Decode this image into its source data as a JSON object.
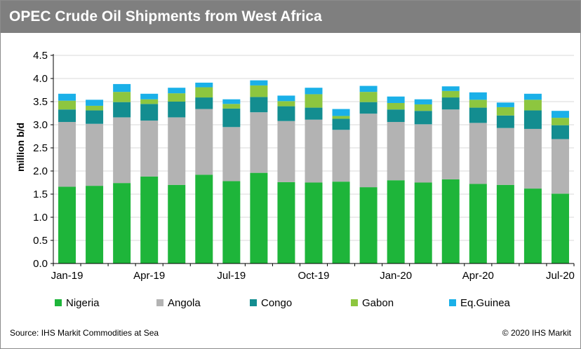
{
  "header": {
    "title": "OPEC Crude Oil Shipments from West Africa"
  },
  "footer": {
    "source": "Source: IHS Markit Commodities at Sea",
    "copyright": "© 2020 IHS Markit"
  },
  "chart_data": {
    "type": "bar",
    "stacked": true,
    "ylabel": "million b/d",
    "ylim": [
      0,
      4.5
    ],
    "yticks": [
      "0.0",
      "0.5",
      "1.0",
      "1.5",
      "2.0",
      "2.5",
      "3.0",
      "3.5",
      "4.0",
      "4.5"
    ],
    "categories": [
      "Jan-19",
      "Feb-19",
      "Mar-19",
      "Apr-19",
      "May-19",
      "Jun-19",
      "Jul-19",
      "Aug-19",
      "Sep-19",
      "Oct-19",
      "Nov-19",
      "Dec-19",
      "Jan-20",
      "Feb-20",
      "Mar-20",
      "Apr-20",
      "May-20",
      "Jun-20",
      "Jul-20"
    ],
    "xtick_labels": [
      "Jan-19",
      "",
      "",
      "Apr-19",
      "",
      "",
      "Jul-19",
      "",
      "",
      "Oct-19",
      "",
      "",
      "Jan-20",
      "",
      "",
      "Apr-20",
      "",
      "",
      "Jul-20"
    ],
    "grid": true,
    "legend_position": "bottom",
    "series": [
      {
        "name": "Nigeria",
        "color": "#1eb53a",
        "values": [
          1.66,
          1.68,
          1.74,
          1.88,
          1.7,
          1.92,
          1.78,
          1.96,
          1.76,
          1.75,
          1.77,
          1.65,
          1.8,
          1.75,
          1.82,
          1.72,
          1.7,
          1.62,
          1.51
        ]
      },
      {
        "name": "Angola",
        "color": "#b3b3b3",
        "values": [
          1.4,
          1.34,
          1.42,
          1.21,
          1.46,
          1.42,
          1.17,
          1.31,
          1.32,
          1.36,
          1.12,
          1.59,
          1.26,
          1.26,
          1.51,
          1.32,
          1.23,
          1.29,
          1.18
        ]
      },
      {
        "name": "Congo",
        "color": "#138d90",
        "values": [
          0.27,
          0.29,
          0.33,
          0.36,
          0.34,
          0.25,
          0.4,
          0.33,
          0.32,
          0.26,
          0.24,
          0.25,
          0.27,
          0.29,
          0.26,
          0.33,
          0.27,
          0.4,
          0.3
        ]
      },
      {
        "name": "Gabon",
        "color": "#8dc63f",
        "values": [
          0.19,
          0.1,
          0.22,
          0.1,
          0.18,
          0.22,
          0.1,
          0.25,
          0.11,
          0.29,
          0.06,
          0.22,
          0.14,
          0.14,
          0.14,
          0.17,
          0.18,
          0.23,
          0.16
        ]
      },
      {
        "name": "Eq.Guinea",
        "color": "#1ab0e8",
        "values": [
          0.15,
          0.13,
          0.17,
          0.12,
          0.12,
          0.1,
          0.1,
          0.11,
          0.12,
          0.14,
          0.15,
          0.13,
          0.14,
          0.11,
          0.1,
          0.16,
          0.1,
          0.13,
          0.15
        ]
      }
    ]
  }
}
